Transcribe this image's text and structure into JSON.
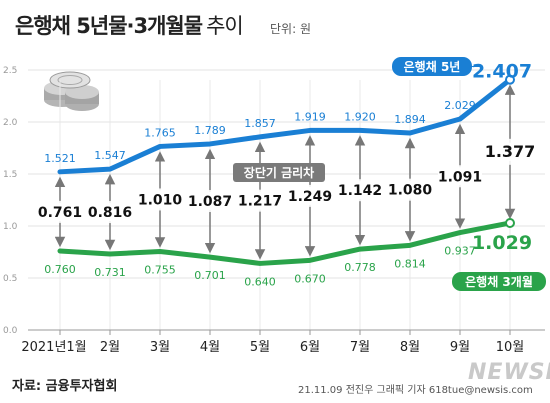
{
  "header": {
    "title": "은행채 5년물·3개월물",
    "subtitle": "추이",
    "unit": "단위: 원"
  },
  "footer": {
    "source": "자료: 금융투자협회",
    "credit": "21.11.09 전진우 그래픽 기자  618tue@newsis.com",
    "watermark": "NEWSIS"
  },
  "chart_data": {
    "type": "line",
    "categories": [
      "2021년1월",
      "2월",
      "3월",
      "4월",
      "5월",
      "6월",
      "7월",
      "8월",
      "9월",
      "10월"
    ],
    "ylim": [
      0,
      2.5
    ],
    "yticks": [
      "0.0",
      "0.5",
      "1.0",
      "1.5",
      "2.0",
      "2.5"
    ],
    "grid": true,
    "series": [
      {
        "name": "은행채 5년",
        "color": "#1a7fd4",
        "values": [
          1.521,
          1.547,
          1.765,
          1.789,
          1.857,
          1.919,
          1.92,
          1.894,
          2.029,
          2.407
        ],
        "labels": [
          "1.521",
          "1.547",
          "1.765",
          "1.789",
          "1.857",
          "1.919",
          "1.920",
          "1.894",
          "2.029",
          "2.407"
        ]
      },
      {
        "name": "은행채 3개월",
        "color": "#2aa34a",
        "values": [
          0.76,
          0.731,
          0.755,
          0.701,
          0.64,
          0.67,
          0.778,
          0.814,
          0.937,
          1.029
        ],
        "labels": [
          "0.760",
          "0.731",
          "0.755",
          "0.701",
          "0.640",
          "0.670",
          "0.778",
          "0.814",
          "0.937",
          "1.029"
        ]
      }
    ],
    "spread": {
      "name": "장단기 금리차",
      "labels": [
        "0.761",
        "0.816",
        "1.010",
        "1.087",
        "1.217",
        "1.249",
        "1.142",
        "1.080",
        "1.091",
        "1.377"
      ]
    }
  }
}
